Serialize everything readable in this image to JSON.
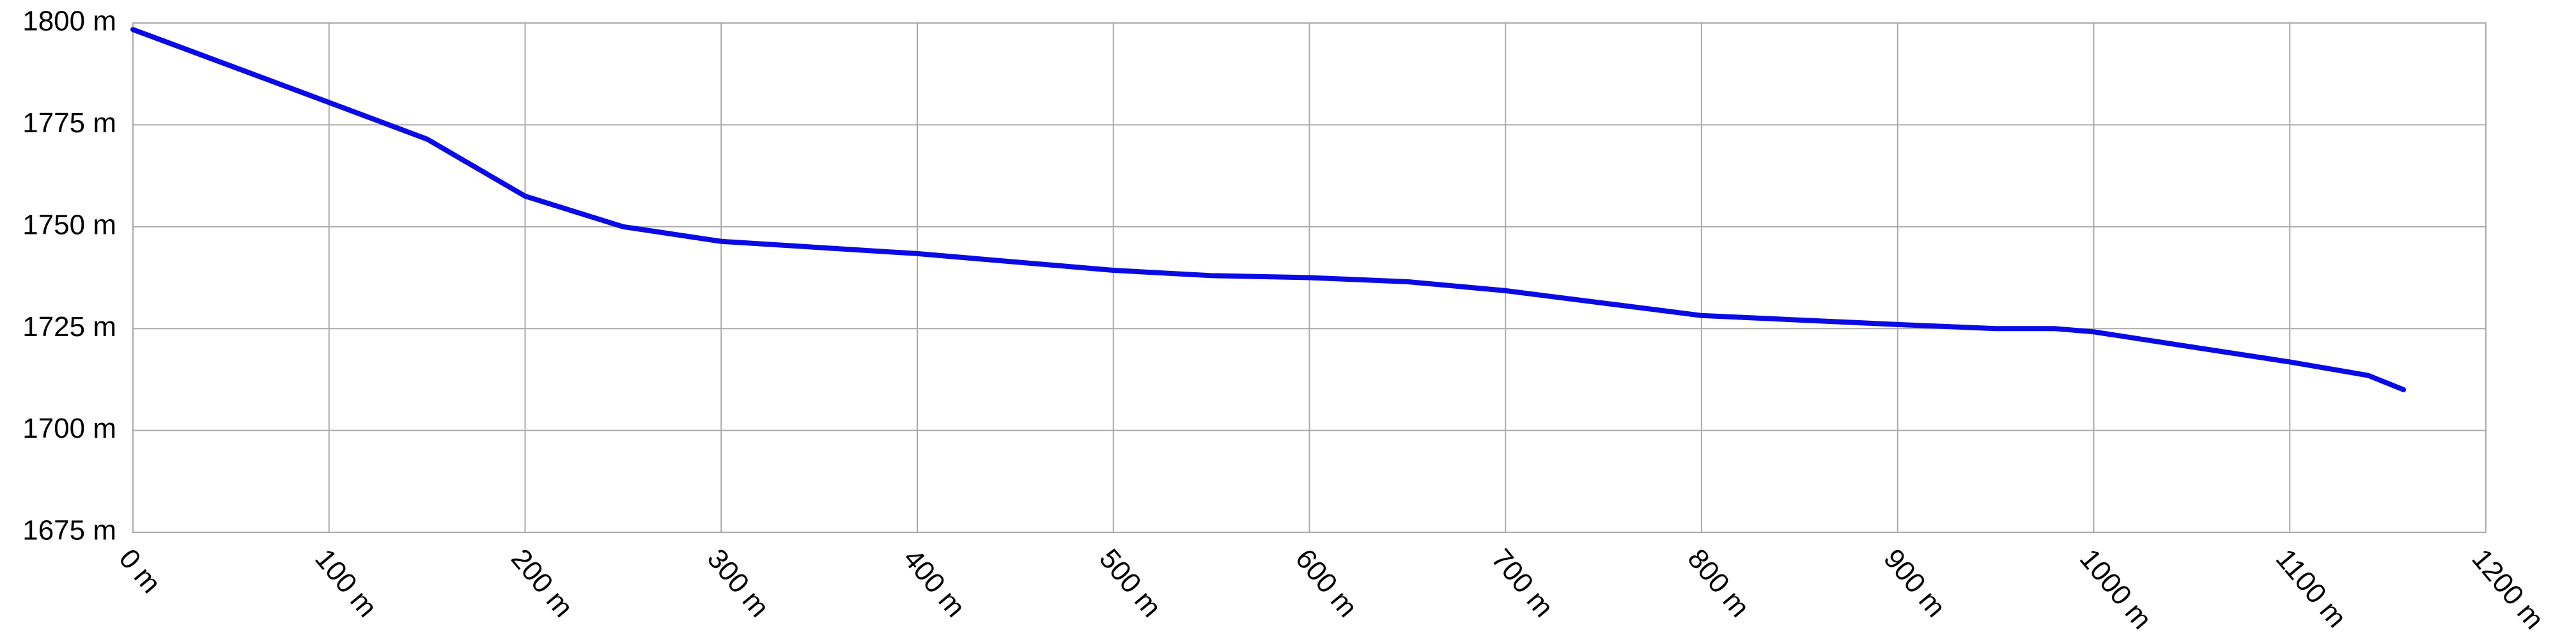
{
  "chart_data": {
    "type": "line",
    "x": [
      0,
      100,
      150,
      200,
      250,
      300,
      400,
      500,
      550,
      600,
      650,
      700,
      800,
      900,
      950,
      980,
      1000,
      1050,
      1100,
      1140,
      1158
    ],
    "values": [
      1798.4,
      1780.5,
      1771.5,
      1757.5,
      1750,
      1746.4,
      1743.4,
      1739.3,
      1738,
      1737.5,
      1736.5,
      1734.3,
      1728.2,
      1726,
      1725,
      1725,
      1724.2,
      1720.5,
      1716.8,
      1713.5,
      1710
    ],
    "color": "#0a0ae6",
    "xlim": [
      0,
      1200
    ],
    "xticks": [
      {
        "value": 0,
        "label": "0 m"
      },
      {
        "value": 100,
        "label": "100 m"
      },
      {
        "value": 200,
        "label": "200 m"
      },
      {
        "value": 300,
        "label": "300 m"
      },
      {
        "value": 400,
        "label": "400 m"
      },
      {
        "value": 500,
        "label": "500 m"
      },
      {
        "value": 600,
        "label": "600 m"
      },
      {
        "value": 700,
        "label": "700 m"
      },
      {
        "value": 800,
        "label": "800 m"
      },
      {
        "value": 900,
        "label": "900 m"
      },
      {
        "value": 1000,
        "label": "1000 m"
      },
      {
        "value": 1100,
        "label": "1100 m"
      },
      {
        "value": 1200,
        "label": "1200 m"
      }
    ],
    "ylim": [
      1675,
      1800
    ],
    "yticks": [
      {
        "value": 1675,
        "label": "1675 m"
      },
      {
        "value": 1700,
        "label": "1700 m"
      },
      {
        "value": 1725,
        "label": "1725 m"
      },
      {
        "value": 1750,
        "label": "1750 m"
      },
      {
        "value": 1775,
        "label": "1775 m"
      },
      {
        "value": 1800,
        "label": "1800 m"
      }
    ],
    "grid": true
  }
}
